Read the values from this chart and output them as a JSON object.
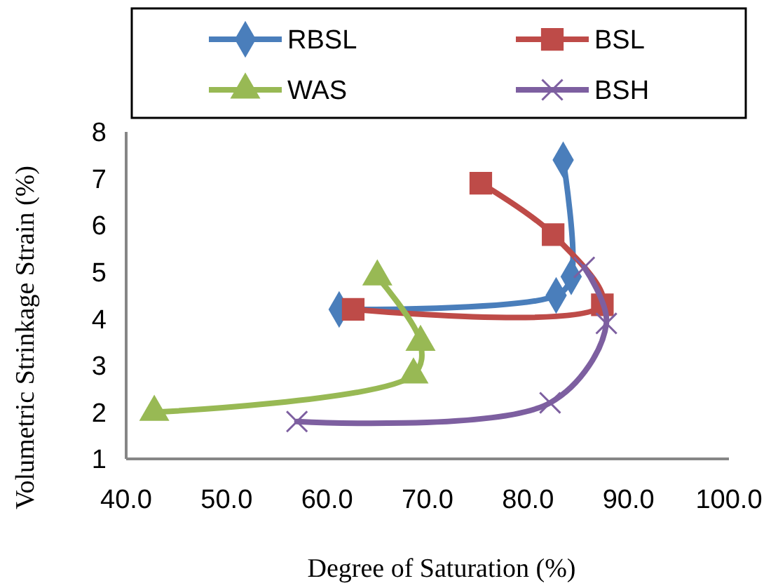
{
  "chart_data": {
    "type": "line",
    "xlabel": "Degree of Saturation (%)",
    "ylabel": "Volumetric Strinkage Strain (%)",
    "xlim": [
      40,
      100
    ],
    "xticks": [
      {
        "value": 40,
        "label": "40.0"
      },
      {
        "value": 50,
        "label": "50.0"
      },
      {
        "value": 60,
        "label": "60.0"
      },
      {
        "value": 70,
        "label": "70.0"
      },
      {
        "value": 80,
        "label": "80.0"
      },
      {
        "value": 90,
        "label": "90.0"
      },
      {
        "value": 100,
        "label": "100.0"
      }
    ],
    "ylim": [
      1,
      8
    ],
    "yticks": [
      1,
      2,
      3,
      4,
      5,
      6,
      7,
      8
    ],
    "grid": false,
    "legend": "top",
    "series": [
      {
        "name": "RBSL",
        "color": "#4a7ebb",
        "marker": "diamond",
        "x": [
          61.2,
          82.8,
          84.3,
          83.5
        ],
        "values": [
          4.2,
          4.5,
          4.9,
          7.4
        ]
      },
      {
        "name": "BSL",
        "color": "#be4b48",
        "marker": "square",
        "x": [
          75.3,
          82.5,
          87.4,
          62.6
        ],
        "values": [
          6.9,
          5.8,
          4.3,
          4.2
        ]
      },
      {
        "name": "WAS",
        "color": "#98b954",
        "marker": "triangle",
        "x": [
          42.8,
          68.6,
          69.3,
          65.0
        ],
        "values": [
          2.0,
          2.8,
          3.5,
          4.9
        ]
      },
      {
        "name": "BSH",
        "color": "#7d5fa0",
        "marker": "cross",
        "x": [
          57.0,
          82.2,
          87.8,
          85.6
        ],
        "values": [
          1.8,
          2.2,
          3.9,
          5.1
        ]
      }
    ]
  }
}
